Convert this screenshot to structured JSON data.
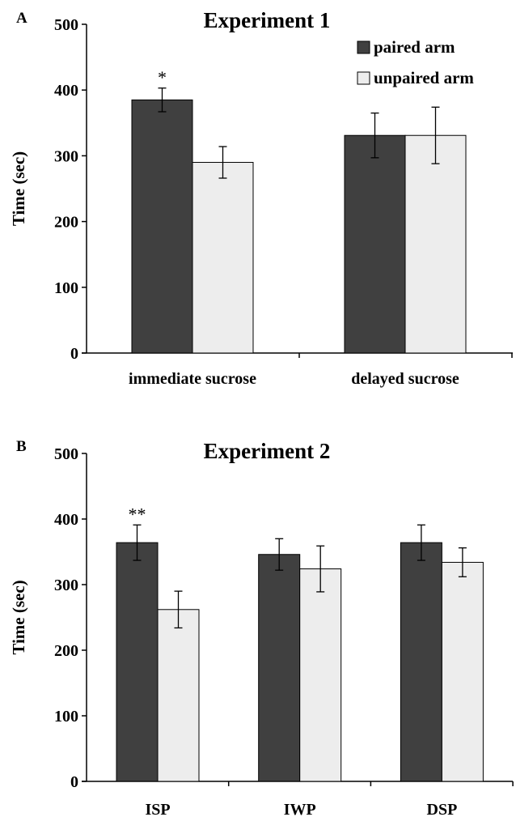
{
  "chart_data": [
    {
      "type": "bar",
      "panel": "A",
      "title": "Experiment 1",
      "ylabel": "Time (sec)",
      "xlabel": "",
      "ylim": [
        0,
        500
      ],
      "yticks": [
        0,
        100,
        200,
        300,
        400,
        500
      ],
      "categories": [
        "immediate sucrose",
        "delayed sucrose"
      ],
      "series": [
        {
          "name": "paired arm",
          "values": [
            385,
            331
          ],
          "errors": [
            18,
            34
          ]
        },
        {
          "name": "unpaired arm",
          "values": [
            290,
            331
          ],
          "errors": [
            24,
            43
          ]
        }
      ],
      "annotations": [
        {
          "text": "*",
          "category": 0,
          "series": 0
        }
      ],
      "legend": "top-right",
      "grid": false
    },
    {
      "type": "bar",
      "panel": "B",
      "title": "Experiment 2",
      "ylabel": "Time (sec)",
      "xlabel": "",
      "ylim": [
        0,
        500
      ],
      "yticks": [
        0,
        100,
        200,
        300,
        400,
        500
      ],
      "categories": [
        "ISP",
        "IWP",
        "DSP"
      ],
      "series": [
        {
          "name": "paired arm",
          "values": [
            364,
            346,
            364
          ],
          "errors": [
            27,
            24,
            27
          ]
        },
        {
          "name": "unpaired arm",
          "values": [
            262,
            324,
            334
          ],
          "errors": [
            28,
            35,
            22
          ]
        }
      ],
      "annotations": [
        {
          "text": "**",
          "category": 0,
          "series": 0
        }
      ],
      "legend": "none",
      "grid": false
    }
  ],
  "colors": {
    "paired": "#404040",
    "unpaired": "#ededed",
    "axis": "#000000"
  }
}
